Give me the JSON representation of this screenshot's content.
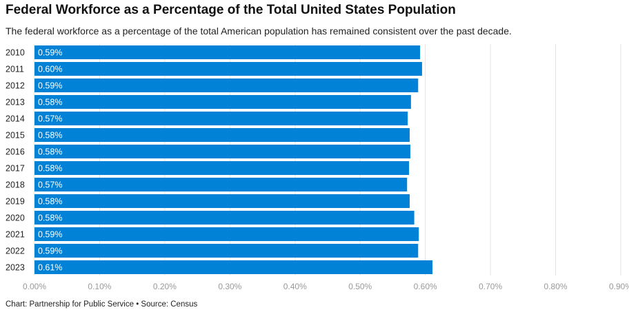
{
  "chart_data": {
    "type": "bar",
    "orientation": "horizontal",
    "title": "Federal Workforce as a Percentage of the Total United States Population",
    "subtitle": "The federal workforce as a percentage of the total American population has remained consistent over the past decade.",
    "categories": [
      "2010",
      "2011",
      "2012",
      "2013",
      "2014",
      "2015",
      "2016",
      "2017",
      "2018",
      "2019",
      "2020",
      "2021",
      "2022",
      "2023"
    ],
    "values": [
      0.592,
      0.595,
      0.589,
      0.578,
      0.573,
      0.576,
      0.577,
      0.575,
      0.572,
      0.576,
      0.583,
      0.59,
      0.589,
      0.611
    ],
    "data_labels": [
      "0.59%",
      "0.60%",
      "0.59%",
      "0.58%",
      "0.57%",
      "0.58%",
      "0.58%",
      "0.58%",
      "0.57%",
      "0.58%",
      "0.58%",
      "0.59%",
      "0.59%",
      "0.61%"
    ],
    "xlim": [
      0,
      0.9
    ],
    "x_ticks": [
      0,
      0.1,
      0.2,
      0.3,
      0.4,
      0.5,
      0.6,
      0.7,
      0.8,
      0.9
    ],
    "x_tick_labels": [
      "0.00%",
      "0.10%",
      "0.20%",
      "0.30%",
      "0.40%",
      "0.50%",
      "0.60%",
      "0.70%",
      "0.80%",
      "0.90%"
    ],
    "grid": true,
    "bar_color": "#0182d6"
  },
  "footer": "Chart: Partnership for Public Service • Source: Census"
}
